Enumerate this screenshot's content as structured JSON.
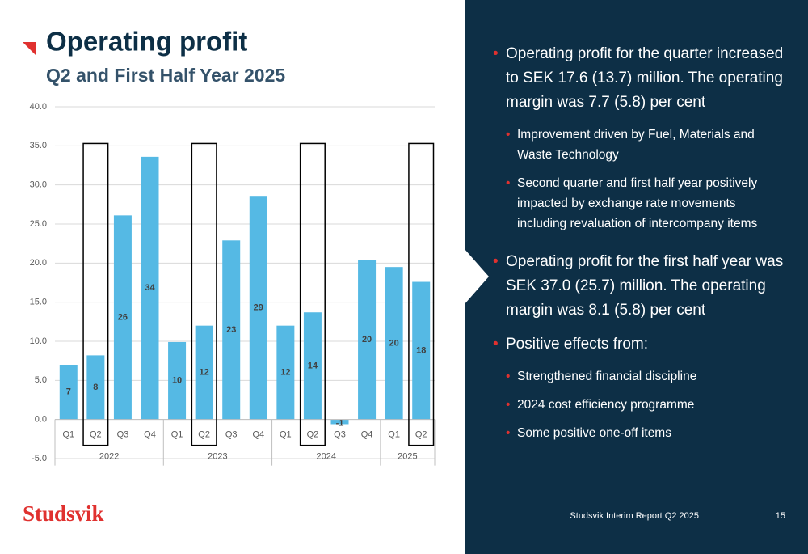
{
  "header": {
    "title": "Operating profit",
    "subtitle": "Q2 and First Half Year 2025"
  },
  "chart_data": {
    "type": "bar",
    "categories": [
      "Q1",
      "Q2",
      "Q3",
      "Q4",
      "Q1",
      "Q2",
      "Q3",
      "Q4",
      "Q1",
      "Q2",
      "Q3",
      "Q4",
      "Q1",
      "Q2"
    ],
    "groups": [
      {
        "label": "2022",
        "span": 4
      },
      {
        "label": "2023",
        "span": 4
      },
      {
        "label": "2024",
        "span": 4
      },
      {
        "label": "2025",
        "span": 2
      }
    ],
    "values": [
      7.0,
      8.2,
      26.1,
      33.6,
      9.9,
      12.0,
      22.9,
      28.6,
      12.0,
      13.7,
      -0.6,
      20.4,
      19.5,
      17.6
    ],
    "value_labels": [
      "7",
      "8",
      "26",
      "34",
      "10",
      "12",
      "23",
      "29",
      "12",
      "14",
      "-1",
      "20",
      "20",
      "18"
    ],
    "highlighted": [
      1,
      5,
      9,
      13
    ],
    "color": "#55b9e4",
    "ylim": [
      -5,
      40
    ],
    "yticks": [
      {
        "value": -5,
        "label": "-5.0"
      },
      {
        "value": 0,
        "label": "0.0"
      },
      {
        "value": 5,
        "label": "5.0"
      },
      {
        "value": 10,
        "label": "10.0"
      },
      {
        "value": 15,
        "label": "15.0"
      },
      {
        "value": 20,
        "label": "20.0"
      },
      {
        "value": 25,
        "label": "25.0"
      },
      {
        "value": 30,
        "label": "30.0"
      },
      {
        "value": 35,
        "label": "35.0"
      },
      {
        "value": 40,
        "label": "40.0"
      }
    ],
    "grid": true
  },
  "bullets": [
    {
      "text": "Operating profit for the quarter increased to SEK 17.6 (13.7) million. The operating margin was 7.7 (5.8) per cent",
      "sub": [
        "Improvement driven by Fuel, Materials and Waste Technology",
        "Second quarter and first half year positively impacted by exchange rate movements including revaluation of intercompany items"
      ]
    },
    {
      "text": "Operating profit for the first half year was SEK 37.0 (25.7) million. The operating margin was 8.1 (5.8) per cent",
      "sub": []
    },
    {
      "text": "Positive effects from:",
      "sub": [
        "Strengthened financial discipline",
        "2024 cost efficiency programme",
        "Some positive one-off items"
      ]
    }
  ],
  "footer": {
    "logo": "Studsvik",
    "report": "Studsvik Interim Report Q2 2025",
    "page": "15"
  }
}
